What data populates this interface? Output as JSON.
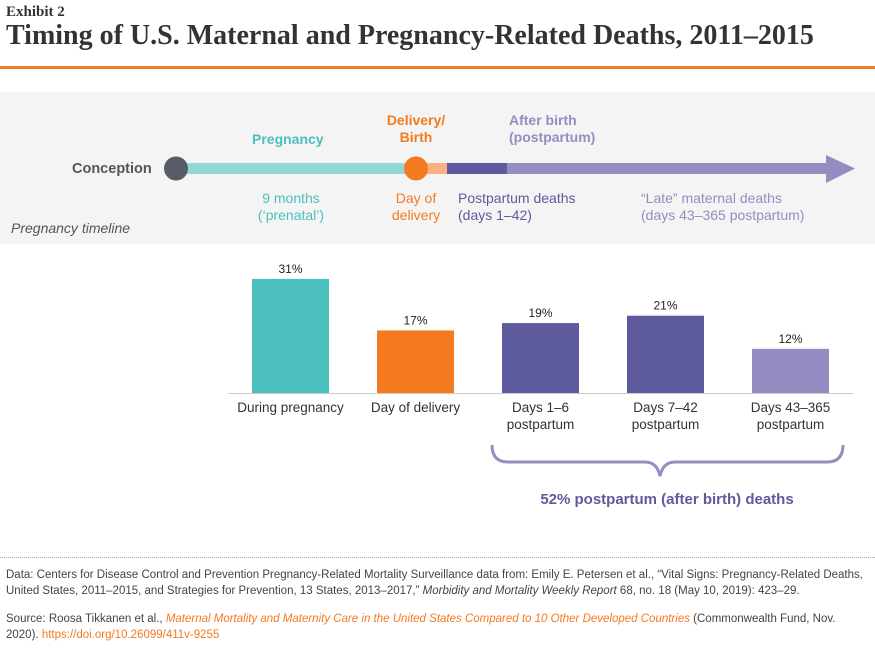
{
  "header": {
    "exhibit": "Exhibit 2",
    "title": "Timing of U.S. Maternal and Pregnancy-Related Deaths, 2011–2015"
  },
  "timeline": {
    "conception": "Conception",
    "pregnancy": "Pregnancy",
    "pregnancy_sub": [
      "9 months",
      "(‘prenatal’)"
    ],
    "delivery": [
      "Delivery/",
      "Birth"
    ],
    "delivery_sub": [
      "Day of",
      "delivery"
    ],
    "after": [
      "After birth",
      "(postpartum)"
    ],
    "postpartum_sub": [
      "Postpartum deaths",
      "(days 1–42)"
    ],
    "late_sub": [
      "“Late” maternal deaths",
      "(days 43–365 postpartum)"
    ],
    "caption": "Pregnancy timeline"
  },
  "colors": {
    "pregnancy": "#4cbfbf",
    "delivery": "#f47a20",
    "postpartum": "#5e5a9e",
    "late": "#958dc1",
    "accent": "#f47a20"
  },
  "chart_data": {
    "type": "bar",
    "categories": [
      [
        "During pregnancy"
      ],
      [
        "Day of delivery"
      ],
      [
        "Days 1–6",
        "postpartum"
      ],
      [
        "Days 7–42",
        "postpartum"
      ],
      [
        "Days 43–365",
        "postpartum"
      ]
    ],
    "values": [
      31,
      17,
      19,
      21,
      12
    ],
    "labels": [
      "31%",
      "17%",
      "19%",
      "21%",
      "12%"
    ],
    "unit": "%",
    "annotation": "52% postpartum (after birth) deaths"
  },
  "footer": {
    "data_prefix": "Data: Centers for Disease Control and Prevention Pregnancy-Related Mortality Surveillance data from: Emily E. Petersen et al., “Vital Signs: Pregnancy-Related Deaths, United States, 2011–2015, and Strategies for Prevention, 13 States, 2013–2017,” ",
    "data_journal": "Morbidity and Mortality Weekly Report",
    "data_suffix": " 68, no. 18 (May 10, 2019): 423–29.",
    "source_prefix": "Source: Roosa Tikkanen et al., ",
    "source_title": "Maternal Mortality and Maternity Care in the United States Compared to 10 Other Developed Countries",
    "source_suffix": " (Commonwealth Fund, Nov. 2020). ",
    "source_link": "https://doi.org/10.26099/411v-9255"
  }
}
